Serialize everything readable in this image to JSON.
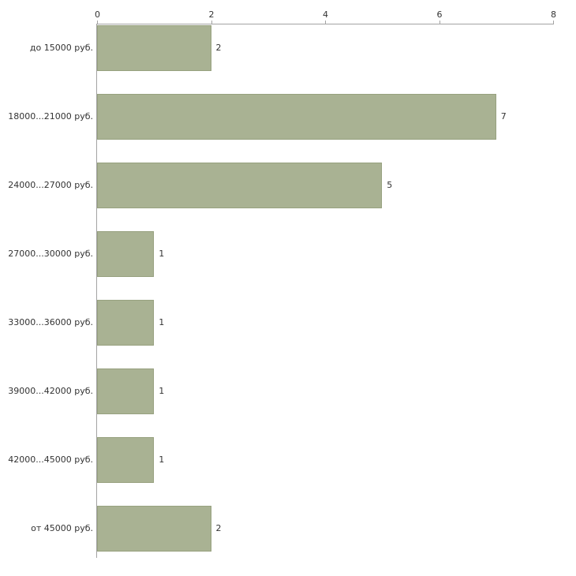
{
  "chart_data": {
    "type": "bar",
    "orientation": "horizontal",
    "title": "",
    "xlabel": "",
    "ylabel": "",
    "categories": [
      "до 15000 руб.",
      "18000...21000 руб.",
      "24000...27000 руб.",
      "27000...30000 руб.",
      "33000...36000 руб.",
      "39000...42000 руб.",
      "42000...45000 руб.",
      "от 45000 руб."
    ],
    "values": [
      2,
      7,
      5,
      1,
      1,
      1,
      1,
      2
    ],
    "xlim": [
      0,
      8
    ],
    "xticks": [
      0,
      2,
      4,
      6,
      8
    ],
    "x_axis_position": "top",
    "grid": "off",
    "legend": "none",
    "bar_color": "#a9b293",
    "bar_border_color": "#97a17f",
    "axis_color": "#a3a3a3",
    "text_color": "#333333",
    "background": "#ffffff"
  }
}
